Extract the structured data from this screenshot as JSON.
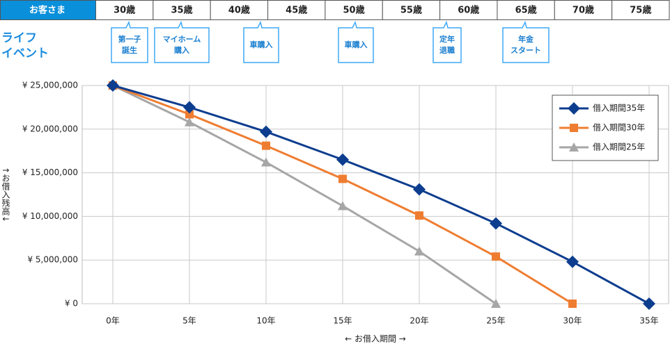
{
  "header": {
    "customer_label": "お客さま",
    "ages": [
      "30歳",
      "35歳",
      "40歳",
      "45歳",
      "50歳",
      "55歳",
      "60歳",
      "65歳",
      "70歳",
      "75歳"
    ]
  },
  "life_events": {
    "title": [
      "ライフ",
      "イベント"
    ],
    "events": [
      [
        "第一子",
        "誕生"
      ],
      [
        "マイホーム",
        "購入"
      ],
      [
        "車購入"
      ],
      [
        "車購入"
      ],
      [
        "定年",
        "退職"
      ],
      [
        "年金",
        "スタート"
      ]
    ]
  },
  "chart_data": {
    "type": "line",
    "categories": [
      "0年",
      "5年",
      "10年",
      "15年",
      "20年",
      "25年",
      "30年",
      "35年"
    ],
    "x_label": "← お借入期間 →",
    "y_label": "↑お借入残高↓",
    "series": [
      {
        "name": "借入期間35年",
        "color": "#0d3d8e",
        "marker": "diamond",
        "values": [
          25000000,
          22500000,
          19700000,
          16500000,
          13100000,
          9200000,
          4800000,
          0
        ]
      },
      {
        "name": "借入期間30年",
        "color": "#ef7d31",
        "marker": "square",
        "values": [
          25000000,
          21700000,
          18100000,
          14300000,
          10100000,
          5400000,
          0,
          null
        ]
      },
      {
        "name": "借入期間25年",
        "color": "#a6a6a6",
        "marker": "triangle",
        "values": [
          25000000,
          20800000,
          16200000,
          11200000,
          6000000,
          0,
          null,
          null
        ]
      }
    ],
    "ylim": [
      0,
      25000000
    ],
    "yticks": [
      {
        "value": 0,
        "label": "¥ 0"
      },
      {
        "value": 5000000,
        "label": "¥ 5,000,000"
      },
      {
        "value": 10000000,
        "label": "¥ 10,000,000"
      },
      {
        "value": 15000000,
        "label": "¥ 15,000,000"
      },
      {
        "value": 20000000,
        "label": "¥ 20,000,000"
      },
      {
        "value": 25000000,
        "label": "¥ 25,000,000"
      }
    ],
    "grid": true,
    "legend": "upper right"
  }
}
